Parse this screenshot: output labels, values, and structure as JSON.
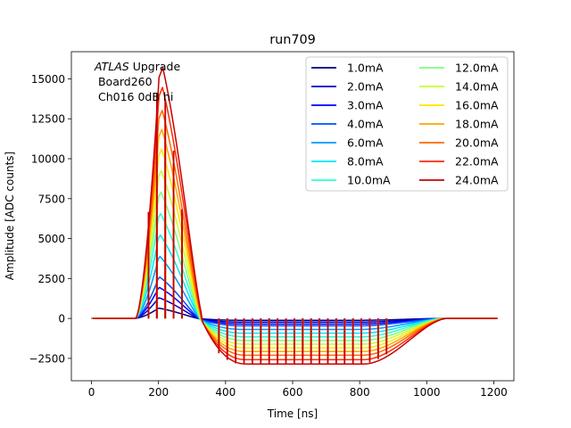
{
  "chart_data": {
    "type": "line",
    "title": "run709",
    "xlabel": "Time [ns]",
    "ylabel": "Amplitude [ADC counts]",
    "xlim": [
      -60,
      1260
    ],
    "ylim": [
      -3900,
      16700
    ],
    "xticks": [
      0,
      200,
      400,
      600,
      800,
      1000,
      1200
    ],
    "yticks": [
      -2500,
      0,
      2500,
      5000,
      7500,
      10000,
      12500,
      15000
    ],
    "annotation": {
      "line1_italic": "ATLAS",
      "line1_rest": " Upgrade",
      "line2": " Board260",
      "line3": " Ch016 0dB hi"
    },
    "legend_location": "upper right",
    "legend_columns": 2,
    "series": [
      {
        "name": "1.0mA",
        "color": "#00007f",
        "peak": 650,
        "undershoot": -115
      },
      {
        "name": "2.0mA",
        "color": "#0000c8",
        "peak": 1300,
        "undershoot": -230
      },
      {
        "name": "3.0mA",
        "color": "#0000ff",
        "peak": 1950,
        "undershoot": -345
      },
      {
        "name": "4.0mA",
        "color": "#0050ff",
        "peak": 2600,
        "undershoot": -460
      },
      {
        "name": "6.0mA",
        "color": "#0098ff",
        "peak": 3900,
        "undershoot": -690
      },
      {
        "name": "8.0mA",
        "color": "#00e4f8",
        "peak": 5250,
        "undershoot": -920
      },
      {
        "name": "10.0mA",
        "color": "#2affcd",
        "peak": 6600,
        "undershoot": -1150
      },
      {
        "name": "12.0mA",
        "color": "#7dff7a",
        "peak": 7950,
        "undershoot": -1380
      },
      {
        "name": "14.0mA",
        "color": "#c1ff36",
        "peak": 9300,
        "undershoot": -1610
      },
      {
        "name": "16.0mA",
        "color": "#ffe600",
        "peak": 10650,
        "undershoot": -1840
      },
      {
        "name": "18.0mA",
        "color": "#ffa400",
        "peak": 11900,
        "undershoot": -2070
      },
      {
        "name": "20.0mA",
        "color": "#ff6800",
        "peak": 13100,
        "undershoot": -2300
      },
      {
        "name": "22.0mA",
        "color": "#ff2900",
        "peak": 14550,
        "undershoot": -2580
      },
      {
        "name": "24.0mA",
        "color": "#c80000",
        "peak": 15800,
        "undershoot": -2850
      }
    ],
    "pulse_shape": {
      "t_start": 0,
      "t_end": 1200,
      "step": 3,
      "rise_start": 128,
      "peak_time": 200,
      "base_decay_end": 320,
      "undershoot_start": 315,
      "undershoot_full": 450,
      "plateau_end": 800,
      "recovery_end": 1050,
      "sample_times": [
        170,
        195,
        220,
        245,
        270,
        380,
        405,
        430,
        455,
        480,
        505,
        530,
        555,
        580,
        605,
        630,
        655,
        680,
        705,
        730,
        755,
        780,
        805,
        830,
        855,
        880
      ]
    }
  }
}
